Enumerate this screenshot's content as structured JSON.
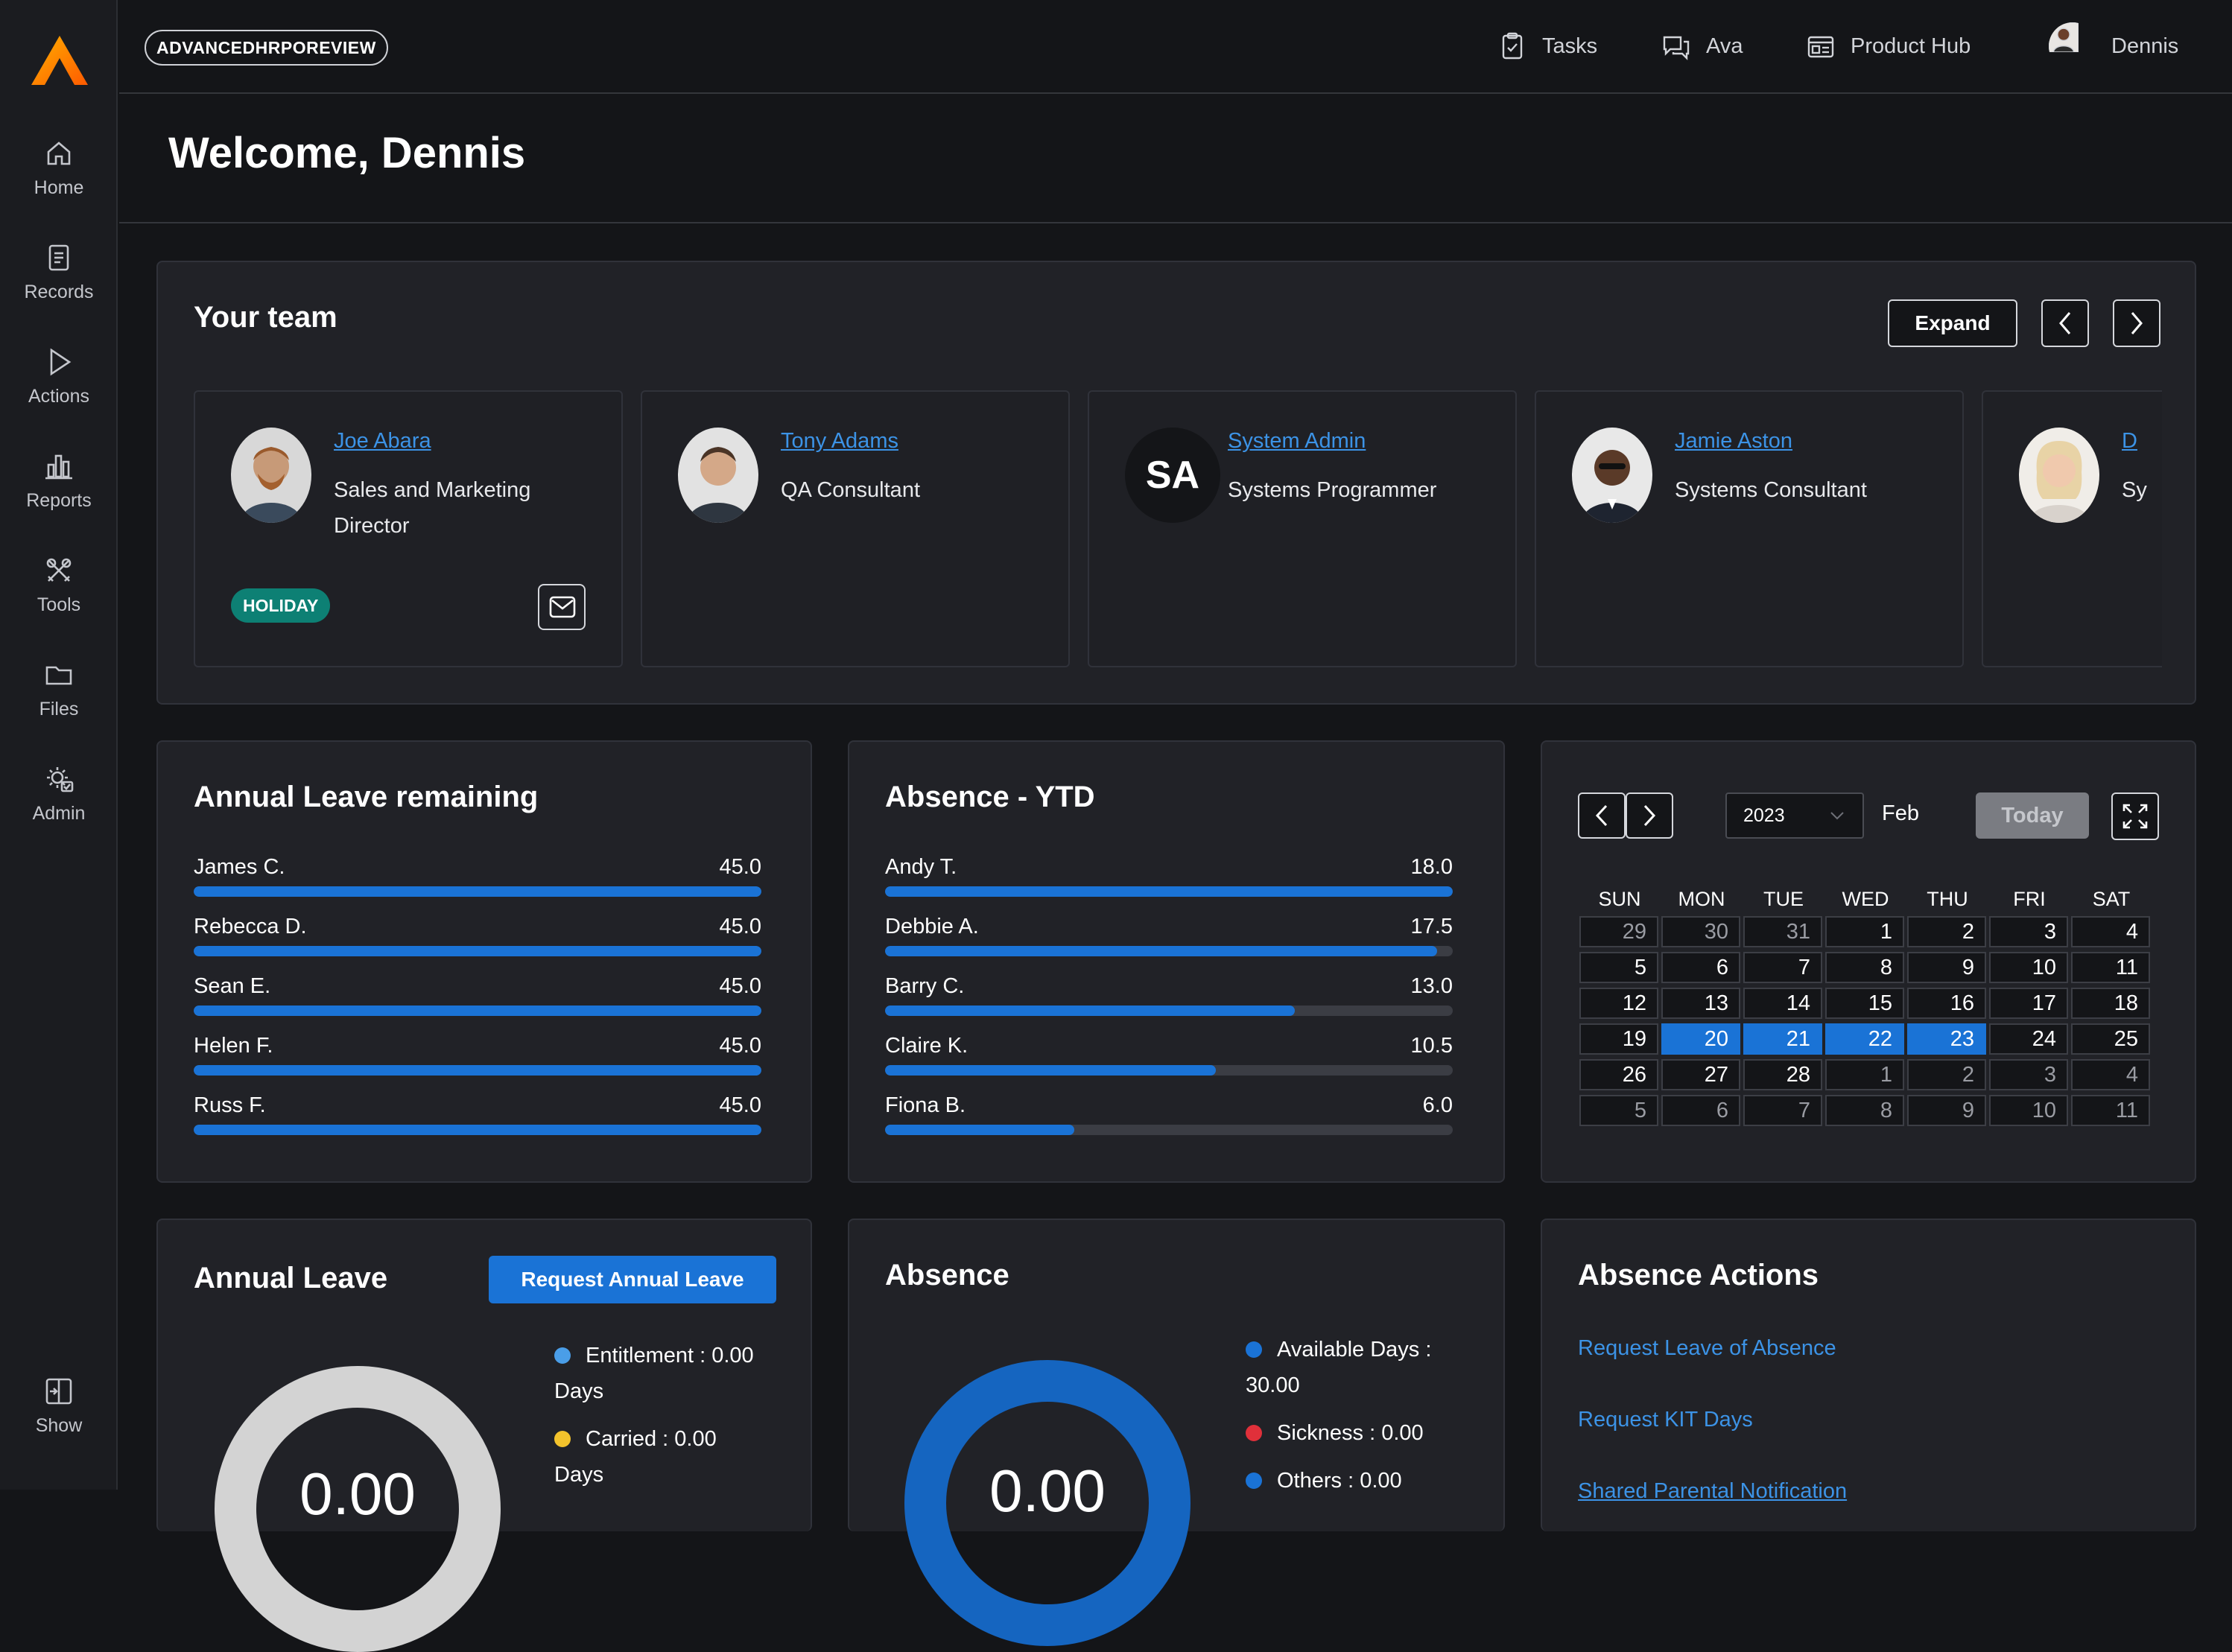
{
  "brand_badge": "ADVANCEDHRPOREVIEW",
  "topnav": {
    "tasks": "Tasks",
    "ava": "Ava",
    "product_hub": "Product Hub",
    "user": "Dennis"
  },
  "sidebar": {
    "items": [
      {
        "label": "Home",
        "icon": "home-icon"
      },
      {
        "label": "Records",
        "icon": "document-icon"
      },
      {
        "label": "Actions",
        "icon": "play-icon"
      },
      {
        "label": "Reports",
        "icon": "bar-chart-icon"
      },
      {
        "label": "Tools",
        "icon": "tools-icon"
      },
      {
        "label": "Files",
        "icon": "folder-icon"
      },
      {
        "label": "Admin",
        "icon": "gear-user-icon"
      }
    ],
    "show": "Show"
  },
  "welcome": "Welcome, Dennis",
  "team": {
    "title": "Your team",
    "expand": "Expand",
    "members": [
      {
        "name": "Joe Abara",
        "role": "Sales and Marketing Director",
        "badge": "HOLIDAY"
      },
      {
        "name": "Tony Adams",
        "role": "QA Consultant"
      },
      {
        "name": "System Admin",
        "role": "Systems Programmer",
        "initials": "SA"
      },
      {
        "name": "Jamie Aston",
        "role": "Systems Consultant"
      },
      {
        "name": "D",
        "role": "Sy"
      }
    ]
  },
  "annual_leave_remaining": {
    "title": "Annual Leave remaining",
    "max": 45,
    "rows": [
      {
        "name": "James C.",
        "value": "45.0",
        "fraction": 1.0
      },
      {
        "name": "Rebecca D.",
        "value": "45.0",
        "fraction": 1.0
      },
      {
        "name": "Sean E.",
        "value": "45.0",
        "fraction": 1.0
      },
      {
        "name": "Helen F.",
        "value": "45.0",
        "fraction": 1.0
      },
      {
        "name": "Russ F.",
        "value": "45.0",
        "fraction": 1.0
      }
    ]
  },
  "absence_ytd": {
    "title": "Absence - YTD",
    "rows": [
      {
        "name": "Andy T.",
        "value": "18.0",
        "fraction": 1.0
      },
      {
        "name": "Debbie A.",
        "value": "17.5",
        "fraction": 0.972
      },
      {
        "name": "Barry C.",
        "value": "13.0",
        "fraction": 0.722
      },
      {
        "name": "Claire K.",
        "value": "10.5",
        "fraction": 0.583
      },
      {
        "name": "Fiona B.",
        "value": "6.0",
        "fraction": 0.333
      }
    ]
  },
  "calendar": {
    "year": "2023",
    "month": "Feb",
    "today": "Today",
    "weekdays": [
      "SUN",
      "MON",
      "TUE",
      "WED",
      "THU",
      "FRI",
      "SAT"
    ],
    "weeks": [
      [
        [
          "29",
          1
        ],
        [
          "30",
          1
        ],
        [
          "31",
          1
        ],
        [
          "1",
          0
        ],
        [
          "2",
          0
        ],
        [
          "3",
          0
        ],
        [
          "4",
          0
        ]
      ],
      [
        [
          "5",
          0
        ],
        [
          "6",
          0
        ],
        [
          "7",
          0
        ],
        [
          "8",
          0
        ],
        [
          "9",
          0
        ],
        [
          "10",
          0
        ],
        [
          "11",
          0
        ]
      ],
      [
        [
          "12",
          0
        ],
        [
          "13",
          0
        ],
        [
          "14",
          0
        ],
        [
          "15",
          0
        ],
        [
          "16",
          0
        ],
        [
          "17",
          0
        ],
        [
          "18",
          0
        ]
      ],
      [
        [
          "19",
          0
        ],
        [
          "20",
          2
        ],
        [
          "21",
          2
        ],
        [
          "22",
          2
        ],
        [
          "23",
          2
        ],
        [
          "24",
          0
        ],
        [
          "25",
          0
        ]
      ],
      [
        [
          "26",
          0
        ],
        [
          "27",
          0
        ],
        [
          "28",
          0
        ],
        [
          "1",
          1
        ],
        [
          "2",
          1
        ],
        [
          "3",
          1
        ],
        [
          "4",
          1
        ]
      ],
      [
        [
          "5",
          1
        ],
        [
          "6",
          1
        ],
        [
          "7",
          1
        ],
        [
          "8",
          1
        ],
        [
          "9",
          1
        ],
        [
          "10",
          1
        ],
        [
          "11",
          1
        ]
      ]
    ]
  },
  "annual_leave": {
    "title": "Annual Leave",
    "request_button": "Request Annual Leave",
    "legend": [
      {
        "label": "Entitlement : 0.00 Days",
        "color": "#4a9ee8"
      },
      {
        "label": "Carried : 0.00 Days",
        "color": "#f3c32c"
      }
    ],
    "center_value": "0.00"
  },
  "absence": {
    "title": "Absence",
    "legend": [
      {
        "label": "Available Days : 30.00",
        "color": "#1a73d6"
      },
      {
        "label": "Sickness : 0.00",
        "color": "#e0303a"
      },
      {
        "label": "Others : 0.00",
        "color": "#1a73d6"
      }
    ],
    "center_value": "0.00"
  },
  "absence_actions": {
    "title": "Absence Actions",
    "links": [
      "Request Leave of Absence",
      "Request KIT Days",
      "Shared Parental Notification"
    ]
  }
}
